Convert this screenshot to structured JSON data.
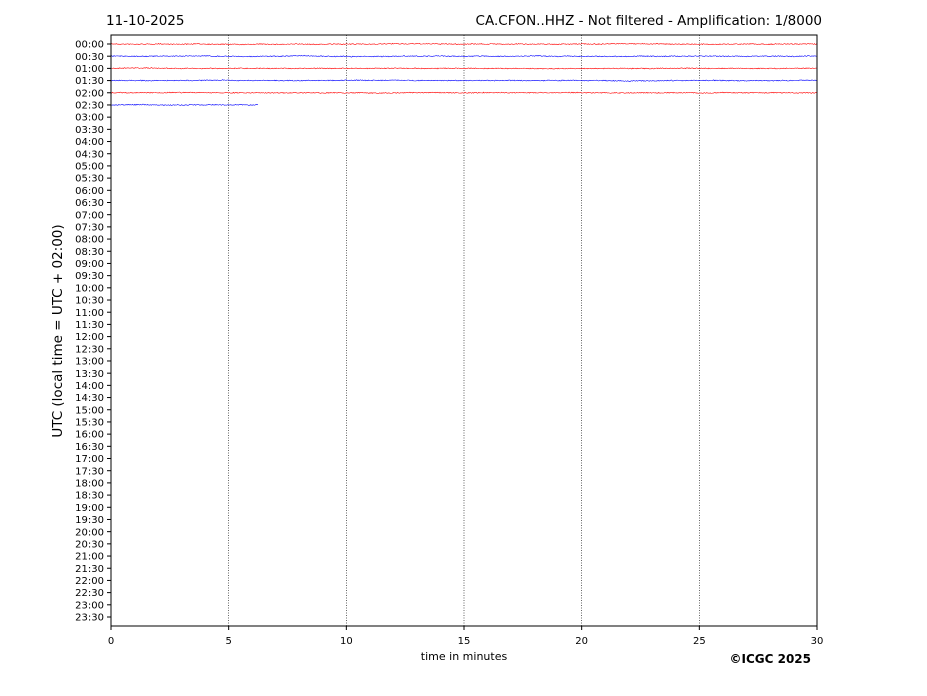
{
  "chart_data": {
    "type": "line",
    "title_left": "11-10-2025",
    "title_right": "CA.CFON..HHZ - Not filtered - Amplification: 1/8000",
    "xlabel": "time in minutes",
    "ylabel": "UTC (local time = UTC + 02:00)",
    "xlim": [
      0,
      30
    ],
    "x_ticks": [
      0,
      5,
      10,
      15,
      20,
      25,
      30
    ],
    "grid": "vertical dotted at x ticks",
    "y_tick_labels": [
      "00:00",
      "00:30",
      "01:00",
      "01:30",
      "02:00",
      "02:30",
      "03:00",
      "03:30",
      "04:00",
      "04:30",
      "05:00",
      "05:30",
      "06:00",
      "06:30",
      "07:00",
      "07:30",
      "08:00",
      "08:30",
      "09:00",
      "09:30",
      "10:00",
      "10:30",
      "11:00",
      "11:30",
      "12:00",
      "12:30",
      "13:00",
      "13:30",
      "14:00",
      "14:30",
      "15:00",
      "15:30",
      "16:00",
      "16:30",
      "17:00",
      "17:30",
      "18:00",
      "18:30",
      "19:00",
      "19:30",
      "20:00",
      "20:30",
      "21:00",
      "21:30",
      "22:00",
      "22:30",
      "23:00",
      "23:30"
    ],
    "trace_colors": [
      "#ff0000",
      "#0000ff"
    ],
    "traces": [
      {
        "row": "00:00",
        "color": "#ff0000",
        "end_minute": 30
      },
      {
        "row": "00:30",
        "color": "#0000ff",
        "end_minute": 30
      },
      {
        "row": "01:00",
        "color": "#ff0000",
        "end_minute": 30
      },
      {
        "row": "01:30",
        "color": "#0000ff",
        "end_minute": 30
      },
      {
        "row": "02:00",
        "color": "#ff0000",
        "end_minute": 30
      },
      {
        "row": "02:30",
        "color": "#0000ff",
        "end_minute": 6.25
      }
    ]
  },
  "copyright": "©ICGC 2025"
}
